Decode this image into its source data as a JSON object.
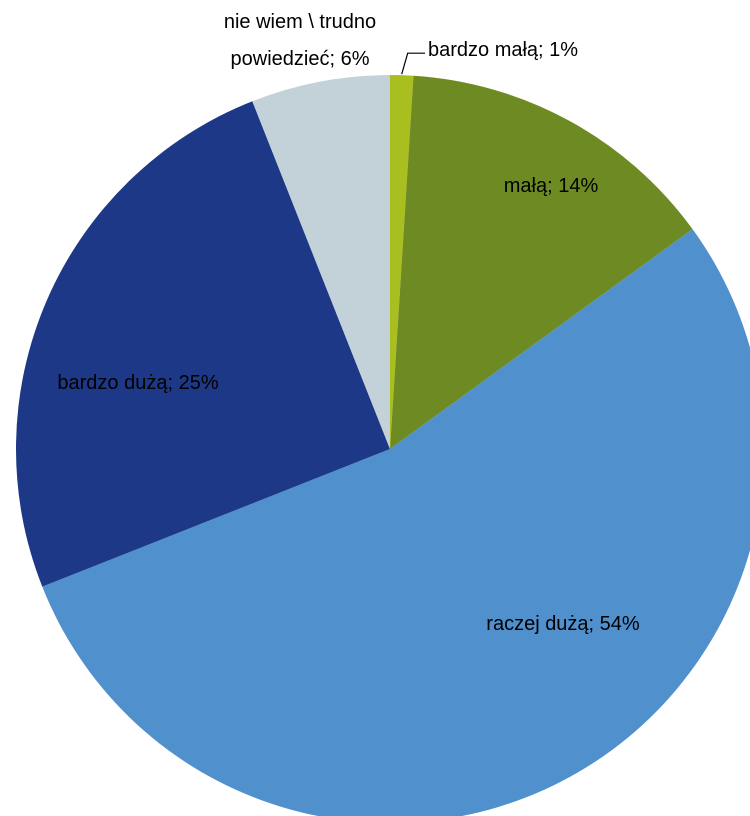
{
  "chart_data": {
    "type": "pie",
    "start_angle_deg": 0,
    "direction": "clockwise",
    "slices": [
      {
        "label": "bardzo małą",
        "value": 1,
        "display": "bardzo małą; 1%",
        "color": "#a9bf1f"
      },
      {
        "label": "małą",
        "value": 14,
        "display": "małą; 14%",
        "color": "#6e8b23"
      },
      {
        "label": "raczej dużą",
        "value": 54,
        "display": "raczej dużą; 54%",
        "color": "#4f90cd"
      },
      {
        "label": "bardzo dużą",
        "value": 25,
        "display": "bardzo dużą; 25%",
        "color": "#1c3886"
      },
      {
        "label": "nie wiem \\ trudno powiedzieć",
        "value": 6,
        "display_lines": [
          "nie wiem \\ trudno",
          "powiedzieć; 6%"
        ],
        "color": "#c3d1d8"
      }
    ]
  }
}
